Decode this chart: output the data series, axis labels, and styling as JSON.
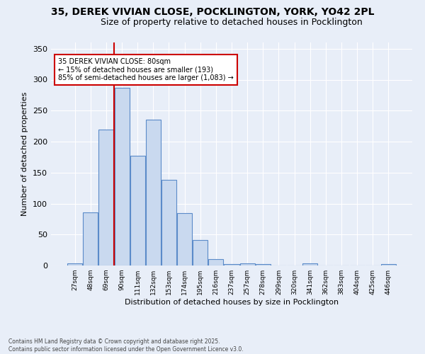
{
  "title_line1": "35, DEREK VIVIAN CLOSE, POCKLINGTON, YORK, YO42 2PL",
  "title_line2": "Size of property relative to detached houses in Pocklington",
  "xlabel": "Distribution of detached houses by size in Pocklington",
  "ylabel": "Number of detached properties",
  "bar_labels": [
    "27sqm",
    "48sqm",
    "69sqm",
    "90sqm",
    "111sqm",
    "132sqm",
    "153sqm",
    "174sqm",
    "195sqm",
    "216sqm",
    "237sqm",
    "257sqm",
    "278sqm",
    "299sqm",
    "320sqm",
    "341sqm",
    "362sqm",
    "383sqm",
    "404sqm",
    "425sqm",
    "446sqm"
  ],
  "bar_values": [
    3,
    86,
    219,
    287,
    177,
    235,
    138,
    85,
    41,
    10,
    2,
    4,
    2,
    0,
    0,
    3,
    0,
    0,
    0,
    0,
    2
  ],
  "bar_color": "#c9d9ef",
  "bar_edge_color": "#5b8bc9",
  "red_line_x": 2.5,
  "annotation_text": "35 DEREK VIVIAN CLOSE: 80sqm\n← 15% of detached houses are smaller (193)\n85% of semi-detached houses are larger (1,083) →",
  "annotation_box_color": "#ffffff",
  "annotation_edge_color": "#cc0000",
  "red_line_color": "#cc0000",
  "ylim": [
    0,
    360
  ],
  "yticks": [
    0,
    50,
    100,
    150,
    200,
    250,
    300,
    350
  ],
  "footer_line1": "Contains HM Land Registry data © Crown copyright and database right 2025.",
  "footer_line2": "Contains public sector information licensed under the Open Government Licence v3.0.",
  "bg_color": "#e8eef8",
  "title_fontsize": 10,
  "subtitle_fontsize": 9
}
